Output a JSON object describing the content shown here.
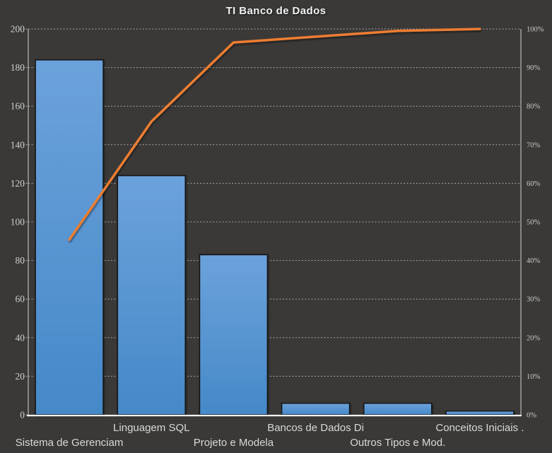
{
  "title": "TI Banco de Dados",
  "colors": {
    "background": "#3a3937",
    "bar_fill_top": "#6ca2db",
    "bar_fill_bottom": "#4589c8",
    "bar_border": "#141414",
    "line": "#ed7d31",
    "gridline": "#cdcdcd",
    "axis_line": "#b9b9b9",
    "x_axis_line": "#f5f5f5",
    "axis_text": "#d0d0d0",
    "title_text": "#f2f2f2"
  },
  "chart_data": {
    "type": "bar",
    "combo": "pareto (bars + cumulative percentage line)",
    "title": "TI Banco de Dados",
    "categories": [
      "Sistema de Gerenciam",
      "Linguagem SQL",
      "Projeto e Modela",
      "Bancos de Dados Di",
      "Outros Tipos e Mod.",
      "Conceitos Iniciais ."
    ],
    "bar_values": [
      184,
      124,
      83,
      6,
      6,
      2
    ],
    "cumulative_line_percent": [
      45.4,
      76.0,
      96.5,
      98.0,
      99.5,
      100.0
    ],
    "left_axis": {
      "min": 0,
      "max": 200,
      "tick_step": 20,
      "tick_labels": [
        "0",
        "20",
        "40",
        "60",
        "80",
        "100",
        "120",
        "140",
        "160",
        "180",
        "200"
      ]
    },
    "right_axis": {
      "min": 0,
      "max": 100,
      "tick_step": 10,
      "tick_labels": [
        "0%",
        "10%",
        "20%",
        "30%",
        "40%",
        "50%",
        "60%",
        "70%",
        "80%",
        "90%",
        "100%"
      ]
    },
    "grid": "horizontal dashed lines on",
    "legend": "none",
    "xlabel": "",
    "ylabel": ""
  }
}
